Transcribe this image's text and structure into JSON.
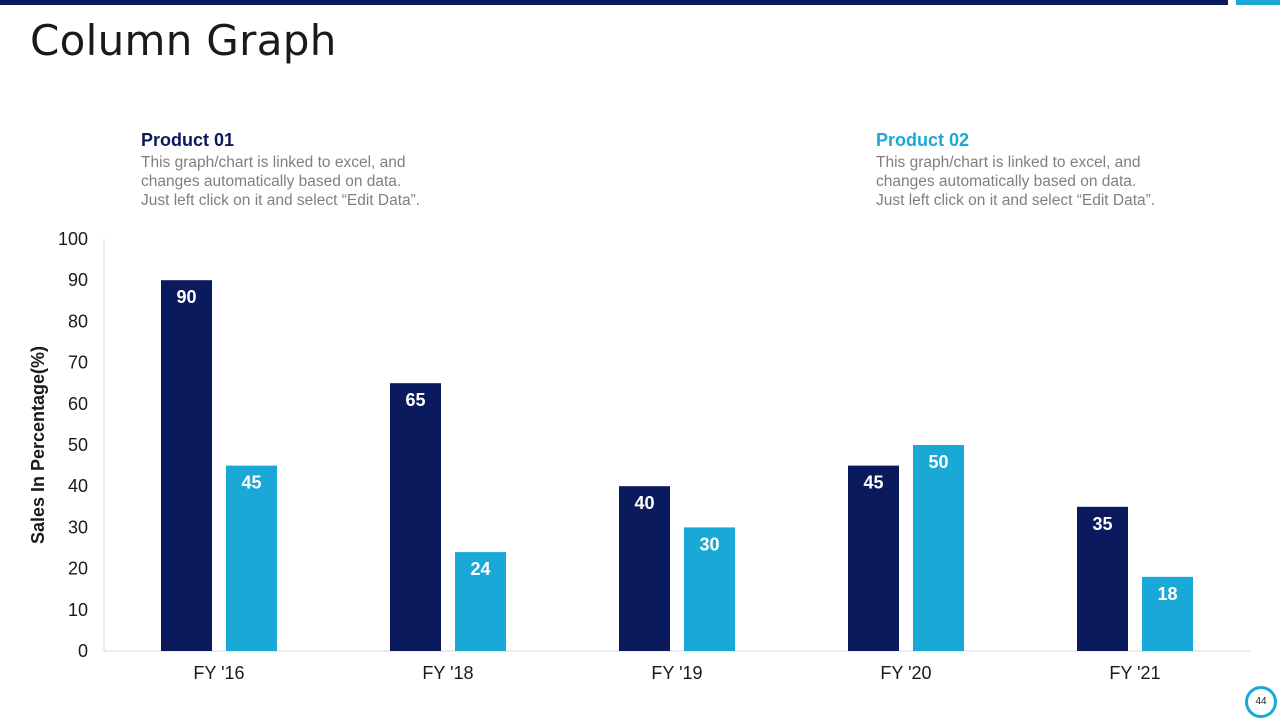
{
  "page": {
    "title": "Column Graph",
    "page_number": "44"
  },
  "legend": {
    "product1": {
      "name": "Product 01",
      "desc_lines": [
        "This graph/chart is linked to excel, and",
        "changes automatically based on data.",
        "Just left click on it and select “Edit Data”."
      ]
    },
    "product2": {
      "name": "Product 02",
      "desc_lines": [
        "This graph/chart is linked to excel, and",
        "changes automatically based on data.",
        "Just left click on it and select “Edit Data”."
      ]
    }
  },
  "colors": {
    "product1": "#0b1a5c",
    "product2": "#1aa9d6",
    "axis_text": "#1a1a1a",
    "axis_line": "#d9d9d9",
    "bar_label": "#ffffff"
  },
  "chart_data": {
    "type": "bar",
    "title": "",
    "xlabel": "",
    "ylabel": "Sales In Percentage(%)",
    "categories": [
      "FY '16",
      "FY '18",
      "FY '19",
      "FY '20",
      "FY '21"
    ],
    "series": [
      {
        "name": "Product 01",
        "values": [
          90,
          65,
          40,
          45,
          35
        ]
      },
      {
        "name": "Product 02",
        "values": [
          45,
          24,
          30,
          50,
          18
        ]
      }
    ],
    "ylim": [
      0,
      100
    ],
    "yticks": [
      0,
      10,
      20,
      30,
      40,
      50,
      60,
      70,
      80,
      90,
      100
    ],
    "grid": false,
    "data_labels": true
  }
}
